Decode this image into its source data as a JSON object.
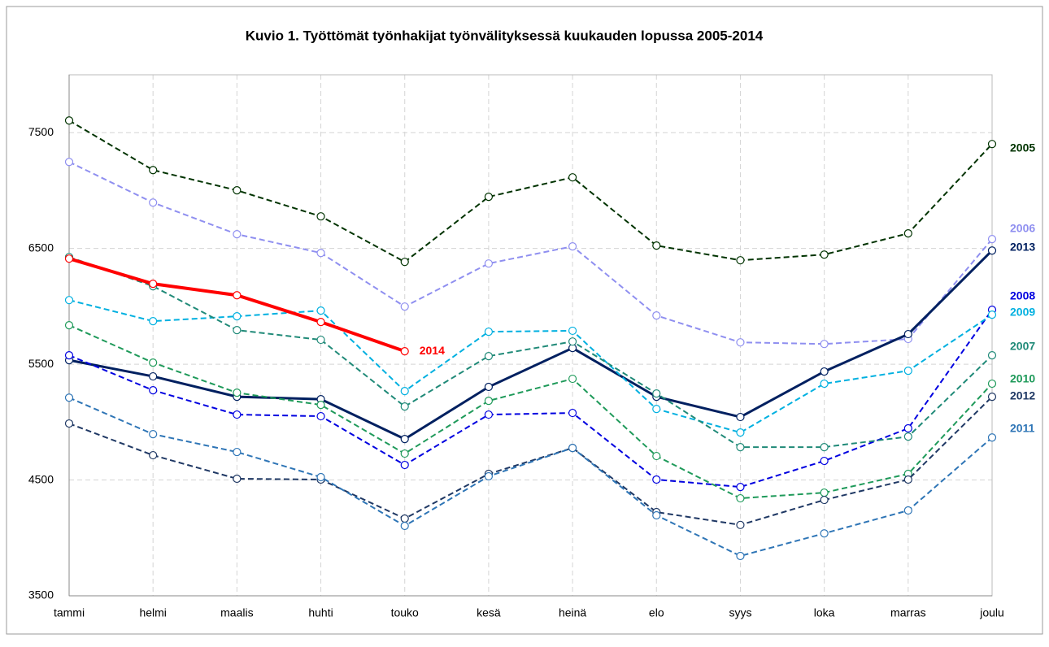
{
  "chart_data": {
    "type": "line",
    "title": "Kuvio 1. Työttömät työnhakijat työnvälityksessä kuukauden lopussa 2005-2014",
    "categories": [
      "tammi",
      "helmi",
      "maalis",
      "huhti",
      "touko",
      "kesä",
      "heinä",
      "elo",
      "syys",
      "loka",
      "marras",
      "joulu"
    ],
    "ylim": [
      3500,
      8000
    ],
    "yticks": [
      3500,
      4500,
      5500,
      6500,
      7500
    ],
    "grid": true,
    "series": [
      {
        "name": "2005",
        "color": "#003300",
        "style": "dashed",
        "values": [
          7605,
          7177,
          7002,
          6777,
          6384,
          6946,
          7114,
          6525,
          6398,
          6447,
          6630,
          7402
        ]
      },
      {
        "name": "2006",
        "color": "#8f8ff0",
        "style": "dashed",
        "values": [
          7247,
          6896,
          6623,
          6461,
          5998,
          6370,
          6518,
          5921,
          5689,
          5675,
          5718,
          6581
        ]
      },
      {
        "name": "2013",
        "color": "#002060",
        "style": "solid",
        "values": [
          5535,
          5395,
          5219,
          5198,
          4854,
          5304,
          5640,
          5219,
          5044,
          5437,
          5760,
          6482
        ]
      },
      {
        "name": "2008",
        "color": "#0000e0",
        "style": "dashed",
        "values": [
          5577,
          5275,
          5065,
          5051,
          4630,
          5065,
          5079,
          4504,
          4440,
          4665,
          4946,
          5970
        ]
      },
      {
        "name": "2009",
        "color": "#00b0e0",
        "style": "dashed",
        "values": [
          6054,
          5872,
          5914,
          5963,
          5268,
          5781,
          5789,
          5114,
          4910,
          5332,
          5444,
          5928
        ]
      },
      {
        "name": "2007",
        "color": "#208a78",
        "style": "dashed",
        "values": [
          6426,
          6174,
          5795,
          5711,
          5135,
          5570,
          5696,
          5247,
          4784,
          4784,
          4875,
          5577
        ]
      },
      {
        "name": "2010",
        "color": "#1f9a5a",
        "style": "dashed",
        "values": [
          5837,
          5514,
          5254,
          5149,
          4728,
          5184,
          5374,
          4707,
          4342,
          4391,
          4553,
          5332
        ]
      },
      {
        "name": "2012",
        "color": "#1f3864",
        "style": "dashed",
        "values": [
          4988,
          4714,
          4511,
          4504,
          4167,
          4553,
          4777,
          4223,
          4112,
          4328,
          4504,
          5219
        ]
      },
      {
        "name": "2011",
        "color": "#2e75b6",
        "style": "dashed",
        "values": [
          5211,
          4896,
          4742,
          4525,
          4104,
          4532,
          4777,
          4195,
          3844,
          4039,
          4237,
          4867
        ]
      },
      {
        "name": "2014",
        "color": "#ff0000",
        "style": "bold",
        "values": [
          6412,
          6195,
          6096,
          5865,
          5612,
          null,
          null,
          null,
          null,
          null,
          null,
          null
        ]
      }
    ]
  }
}
